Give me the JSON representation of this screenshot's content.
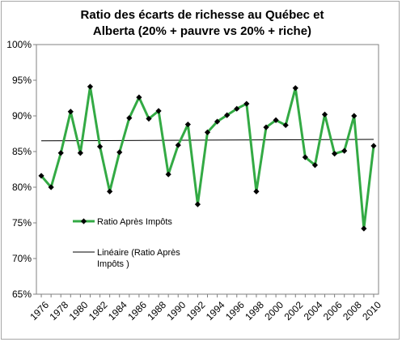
{
  "chart_data": {
    "type": "line",
    "title_line1": "Ratio des écarts de richesse au Québec et",
    "title_line2": "Alberta (20% + pauvre vs 20% + riche)",
    "x": [
      1976,
      1977,
      1978,
      1979,
      1980,
      1981,
      1982,
      1983,
      1984,
      1985,
      1986,
      1987,
      1988,
      1989,
      1990,
      1991,
      1992,
      1993,
      1994,
      1995,
      1996,
      1997,
      1998,
      1999,
      2000,
      2001,
      2002,
      2003,
      2004,
      2005,
      2006,
      2007,
      2008,
      2009,
      2010
    ],
    "x_tick_labels": [
      "1976",
      "1978",
      "1980",
      "1982",
      "1984",
      "1986",
      "1988",
      "1990",
      "1992",
      "1994",
      "1996",
      "1998",
      "2000",
      "2002",
      "2004",
      "2006",
      "2008",
      "2010"
    ],
    "ylim": [
      65,
      100
    ],
    "y_ticks": [
      65,
      70,
      75,
      80,
      85,
      90,
      95,
      100
    ],
    "y_tick_labels": [
      "65%",
      "70%",
      "75%",
      "80%",
      "85%",
      "90%",
      "95%",
      "100%"
    ],
    "series": [
      {
        "name": "Ratio Après Impôts",
        "color": "#33aa44",
        "marker": "diamond",
        "values": [
          81.6,
          80.0,
          84.8,
          90.6,
          84.8,
          94.1,
          85.7,
          79.4,
          84.9,
          89.7,
          92.6,
          89.6,
          90.7,
          81.8,
          85.9,
          88.8,
          77.6,
          87.7,
          89.2,
          90.1,
          91.0,
          91.7,
          79.4,
          88.4,
          89.4,
          88.7,
          93.9,
          84.2,
          83.1,
          90.2,
          84.7,
          85.1,
          90.0,
          74.2,
          85.8
        ]
      },
      {
        "name": "Linéaire (Ratio Après Impôts )",
        "color": "#000000",
        "trend_start": 86.5,
        "trend_end": 86.7
      }
    ],
    "legend": {
      "entry1": "Ratio Après Impôts",
      "entry2_line1": "Linéaire (Ratio Après",
      "entry2_line2": "Impôts )"
    }
  }
}
